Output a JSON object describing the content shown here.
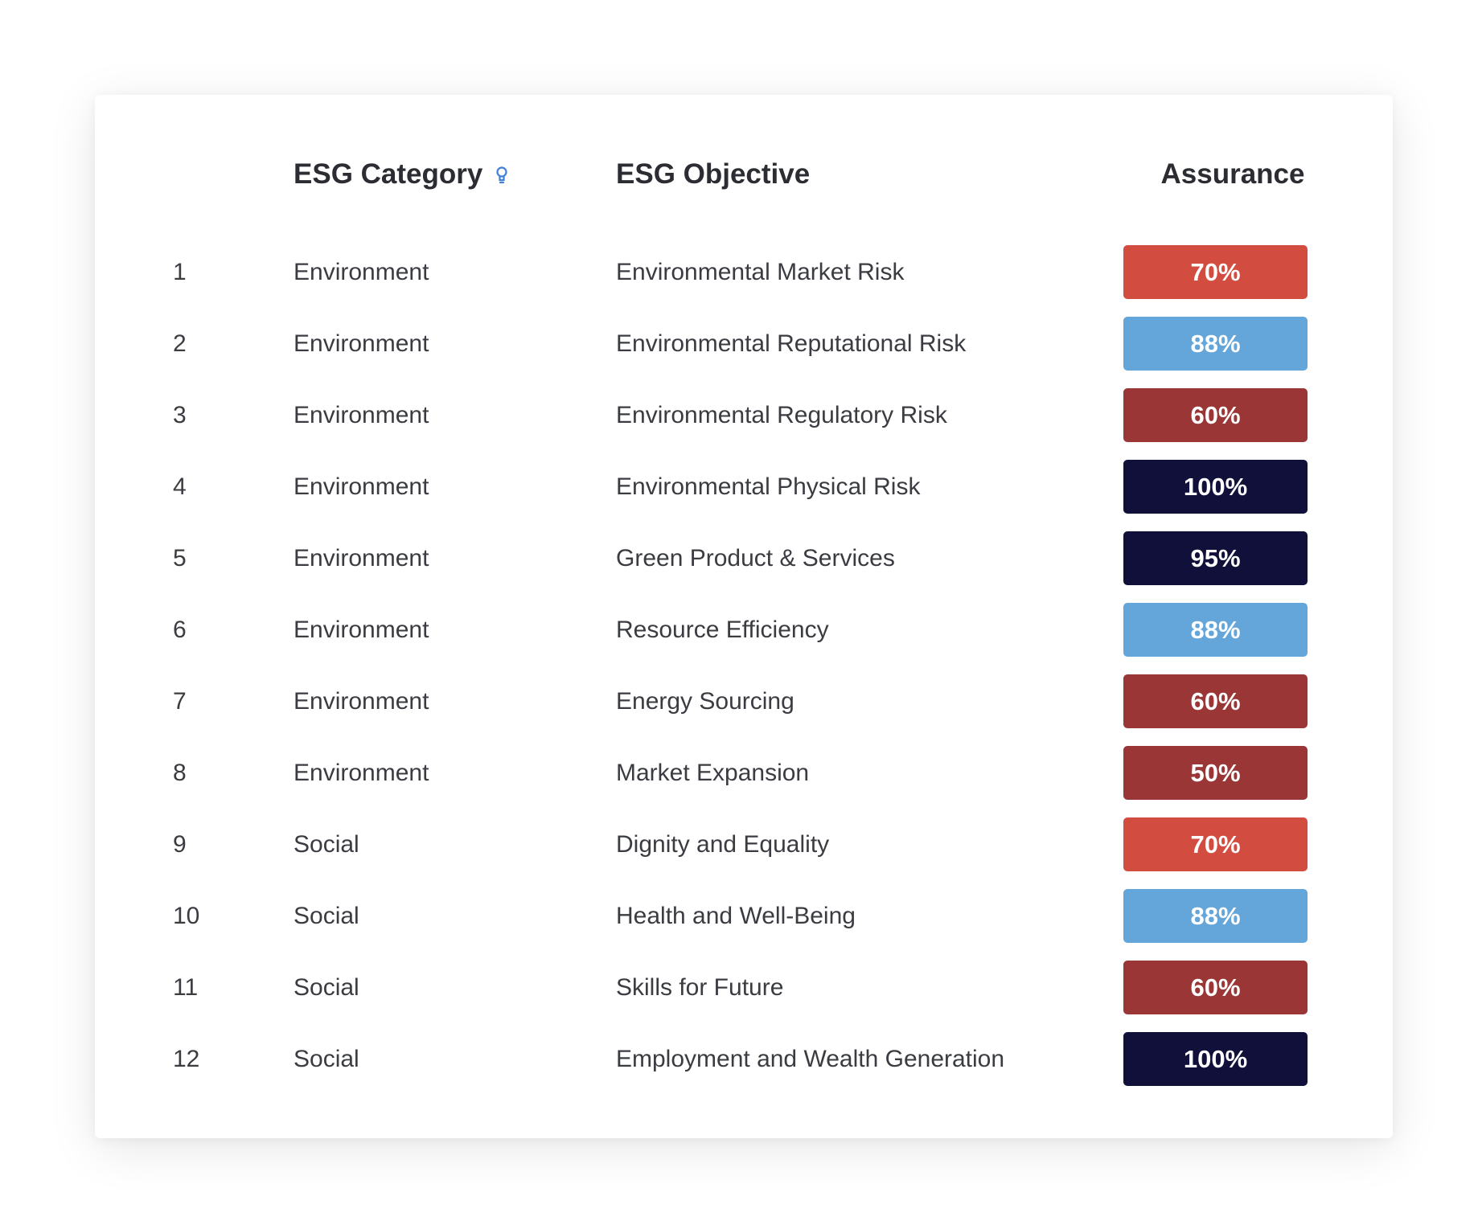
{
  "headers": {
    "category": "ESG Category",
    "objective": "ESG Objective",
    "assurance": "Assurance"
  },
  "icons": {
    "category_info": "lightbulb-icon"
  },
  "colors": {
    "medium": "#d24d40",
    "good": "#64a5da",
    "low": "#9a3636",
    "high": "#10103b",
    "info_icon": "#3f7fd8"
  },
  "rows": [
    {
      "num": "1",
      "category": "Environment",
      "objective": "Environmental Market Risk",
      "assurance": "70%",
      "color": "#d24d40"
    },
    {
      "num": "2",
      "category": "Environment",
      "objective": "Environmental Reputational Risk",
      "assurance": "88%",
      "color": "#64a5da"
    },
    {
      "num": "3",
      "category": "Environment",
      "objective": "Environmental Regulatory Risk",
      "assurance": "60%",
      "color": "#9a3636"
    },
    {
      "num": "4",
      "category": "Environment",
      "objective": "Environmental Physical Risk",
      "assurance": "100%",
      "color": "#10103b"
    },
    {
      "num": "5",
      "category": "Environment",
      "objective": "Green Product & Services",
      "assurance": "95%",
      "color": "#10103b"
    },
    {
      "num": "6",
      "category": "Environment",
      "objective": "Resource Efficiency",
      "assurance": "88%",
      "color": "#64a5da"
    },
    {
      "num": "7",
      "category": "Environment",
      "objective": "Energy Sourcing",
      "assurance": "60%",
      "color": "#9a3636"
    },
    {
      "num": "8",
      "category": "Environment",
      "objective": "Market Expansion",
      "assurance": "50%",
      "color": "#9a3636"
    },
    {
      "num": "9",
      "category": "Social",
      "objective": "Dignity and Equality",
      "assurance": "70%",
      "color": "#d24d40"
    },
    {
      "num": "10",
      "category": "Social",
      "objective": "Health and Well-Being",
      "assurance": "88%",
      "color": "#64a5da"
    },
    {
      "num": "11",
      "category": "Social",
      "objective": "Skills for Future",
      "assurance": "60%",
      "color": "#9a3636"
    },
    {
      "num": "12",
      "category": "Social",
      "objective": "Employment and Wealth Generation",
      "assurance": "100%",
      "color": "#10103b"
    }
  ]
}
